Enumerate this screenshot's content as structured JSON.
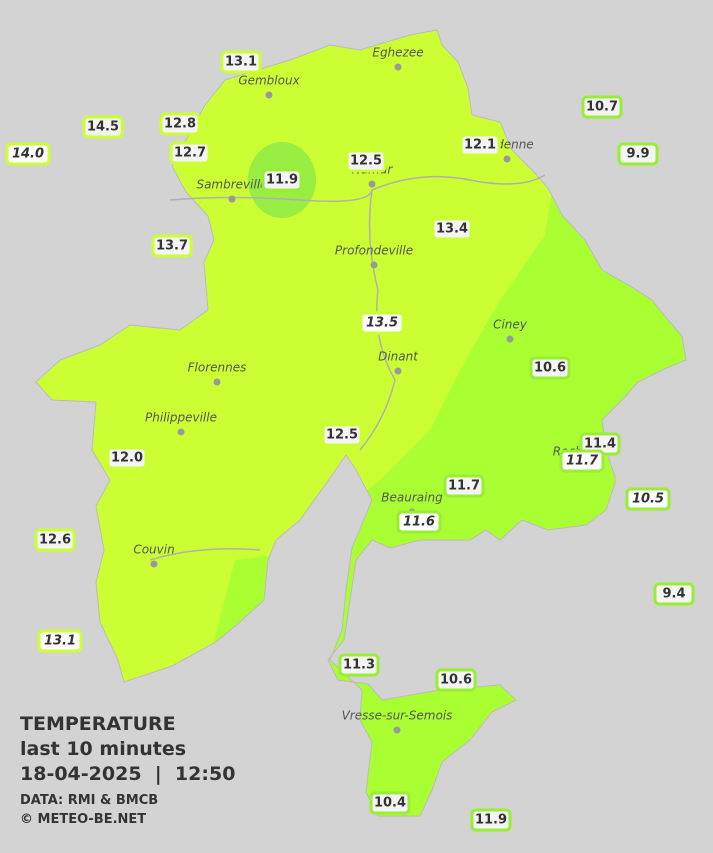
{
  "cities": [
    "Eghezee",
    "Gembloux",
    "Andenne",
    "Namur",
    "Sambreville",
    "Profondeville",
    "Ciney",
    "Dinant",
    "Florennes",
    "Philippeville",
    "Rochefort",
    "Beauraing",
    "Couvin",
    "Vresse-sur-Semois"
  ],
  "stations": [
    {
      "label": "13.1"
    },
    {
      "label": "14.5"
    },
    {
      "label": "12.8"
    },
    {
      "label": "14.0",
      "italic": true
    },
    {
      "label": "12.7"
    },
    {
      "label": "11.9"
    },
    {
      "label": "12.5"
    },
    {
      "label": "12.1"
    },
    {
      "label": "10.7"
    },
    {
      "label": "9.9"
    },
    {
      "label": "13.7"
    },
    {
      "label": "13.4"
    },
    {
      "label": "13.5",
      "italic": true
    },
    {
      "label": "10.6"
    },
    {
      "label": "12.0"
    },
    {
      "label": "12.5"
    },
    {
      "label": "11.4"
    },
    {
      "label": "11.7",
      "italic": true
    },
    {
      "label": "10.5",
      "italic": true
    },
    {
      "label": "11.7"
    },
    {
      "label": "11.6",
      "italic": true
    },
    {
      "label": "12.6"
    },
    {
      "label": "9.4"
    },
    {
      "label": "13.1",
      "italic": true
    },
    {
      "label": "11.3"
    },
    {
      "label": "10.6"
    },
    {
      "label": "10.4"
    },
    {
      "label": "11.9"
    }
  ],
  "caption": {
    "title": "TEMPERATURE",
    "subtitle": "last 10 minutes",
    "datetime": "18-04-2025  |  12:50",
    "source": "DATA: RMI & BMCB",
    "copyright": "© METEO-BE.NET"
  }
}
